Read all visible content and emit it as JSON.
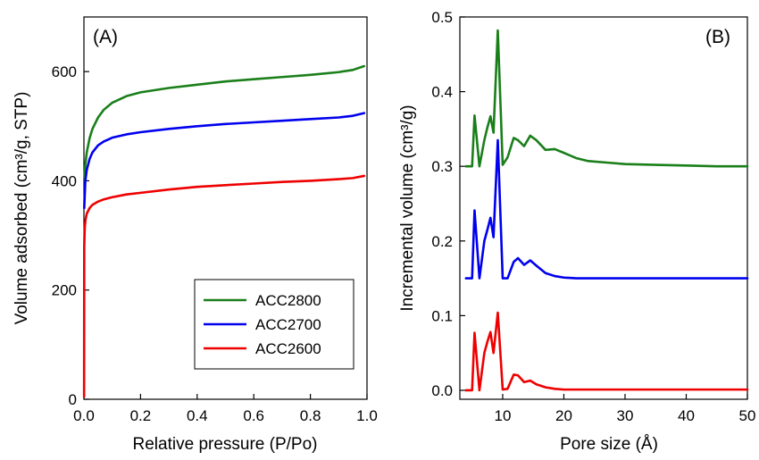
{
  "chart_data": [
    {
      "type": "line",
      "panel_label": "(A)",
      "xlabel": "Relative pressure (P/Po)",
      "ylabel": "Volume adsorbed (cm³/g, STP)",
      "xlim": [
        0,
        1.0
      ],
      "ylim": [
        0,
        700
      ],
      "xticks": [
        "0.0",
        "0.2",
        "0.4",
        "0.6",
        "0.8",
        "1.0"
      ],
      "yticks": [
        "0",
        "200",
        "400",
        "600"
      ],
      "grid": false,
      "legend_position": "bottom-right",
      "series": [
        {
          "name": "ACC2800",
          "color": "#1a7f1a",
          "x": [
            0.001,
            0.005,
            0.01,
            0.02,
            0.03,
            0.05,
            0.07,
            0.1,
            0.15,
            0.2,
            0.3,
            0.4,
            0.5,
            0.6,
            0.7,
            0.8,
            0.9,
            0.95,
            0.99
          ],
          "y": [
            400,
            430,
            452,
            478,
            495,
            516,
            530,
            543,
            555,
            562,
            570,
            576,
            582,
            586,
            590,
            594,
            599,
            603,
            610
          ]
        },
        {
          "name": "ACC2700",
          "color": "#0000ee",
          "x": [
            0.001,
            0.005,
            0.01,
            0.02,
            0.03,
            0.05,
            0.07,
            0.1,
            0.15,
            0.2,
            0.3,
            0.4,
            0.5,
            0.6,
            0.7,
            0.8,
            0.9,
            0.95,
            0.99
          ],
          "y": [
            350,
            400,
            420,
            440,
            452,
            465,
            472,
            479,
            485,
            489,
            495,
            500,
            504,
            507,
            510,
            513,
            516,
            519,
            524
          ]
        },
        {
          "name": "ACC2600",
          "color": "#ee0000",
          "x": [
            0.0005,
            0.001,
            0.003,
            0.006,
            0.01,
            0.02,
            0.03,
            0.05,
            0.07,
            0.1,
            0.15,
            0.2,
            0.3,
            0.4,
            0.5,
            0.6,
            0.7,
            0.8,
            0.9,
            0.95,
            0.99
          ],
          "y": [
            5,
            280,
            315,
            330,
            340,
            350,
            356,
            362,
            366,
            370,
            375,
            378,
            384,
            389,
            392,
            395,
            398,
            400,
            403,
            405,
            409
          ]
        }
      ]
    },
    {
      "type": "line",
      "panel_label": "(B)",
      "xlabel": "Pore size (Å)",
      "ylabel": "Incremental volume (cm³/g)",
      "xlim": [
        3,
        50
      ],
      "ylim": [
        -0.012,
        0.5
      ],
      "xticks": [
        "10",
        "20",
        "30",
        "40",
        "50"
      ],
      "yticks": [
        "0.0",
        "0.1",
        "0.2",
        "0.3",
        "0.4",
        "0.5"
      ],
      "grid": false,
      "series": [
        {
          "color": "#1a7f1a",
          "x": [
            4.0,
            5.0,
            5.4,
            6.2,
            7.0,
            7.5,
            8.0,
            8.5,
            9.2,
            10.0,
            10.8,
            11.8,
            12.5,
            13.5,
            14.5,
            15.5,
            17.0,
            18.5,
            20.0,
            22.0,
            24.0,
            27.0,
            30.0,
            35.0,
            40.0,
            45.0,
            50.0
          ],
          "y": [
            0.3,
            0.3,
            0.368,
            0.3,
            0.335,
            0.352,
            0.367,
            0.345,
            0.482,
            0.302,
            0.312,
            0.338,
            0.335,
            0.327,
            0.341,
            0.335,
            0.322,
            0.323,
            0.318,
            0.311,
            0.307,
            0.305,
            0.303,
            0.302,
            0.301,
            0.3,
            0.3
          ],
          "offset": 0.3
        },
        {
          "color": "#0000ee",
          "x": [
            4.0,
            5.0,
            5.4,
            6.2,
            7.0,
            7.5,
            8.0,
            8.5,
            9.2,
            10.0,
            10.8,
            11.8,
            12.5,
            13.5,
            14.5,
            15.5,
            17.0,
            18.5,
            20.0,
            22.0,
            24.0,
            27.0,
            30.0,
            35.0,
            40.0,
            45.0,
            50.0
          ],
          "y": [
            0.15,
            0.15,
            0.241,
            0.15,
            0.2,
            0.215,
            0.231,
            0.205,
            0.335,
            0.15,
            0.15,
            0.172,
            0.177,
            0.168,
            0.174,
            0.167,
            0.157,
            0.153,
            0.151,
            0.15,
            0.15,
            0.15,
            0.15,
            0.15,
            0.15,
            0.15,
            0.15
          ],
          "offset": 0.15
        },
        {
          "color": "#ee0000",
          "x": [
            4.0,
            5.0,
            5.4,
            6.2,
            7.0,
            7.5,
            8.0,
            8.5,
            9.2,
            10.0,
            10.8,
            11.8,
            12.5,
            13.5,
            14.5,
            15.5,
            17.0,
            18.5,
            20.0,
            22.0,
            24.0,
            27.0,
            30.0,
            35.0,
            40.0,
            45.0,
            50.0
          ],
          "y": [
            0.0,
            0.0,
            0.077,
            0.0,
            0.05,
            0.065,
            0.078,
            0.05,
            0.104,
            0.001,
            0.002,
            0.021,
            0.02,
            0.011,
            0.013,
            0.008,
            0.004,
            0.002,
            0.001,
            0.001,
            0.001,
            0.001,
            0.001,
            0.001,
            0.001,
            0.001,
            0.001
          ],
          "offset": 0.0
        }
      ]
    }
  ]
}
